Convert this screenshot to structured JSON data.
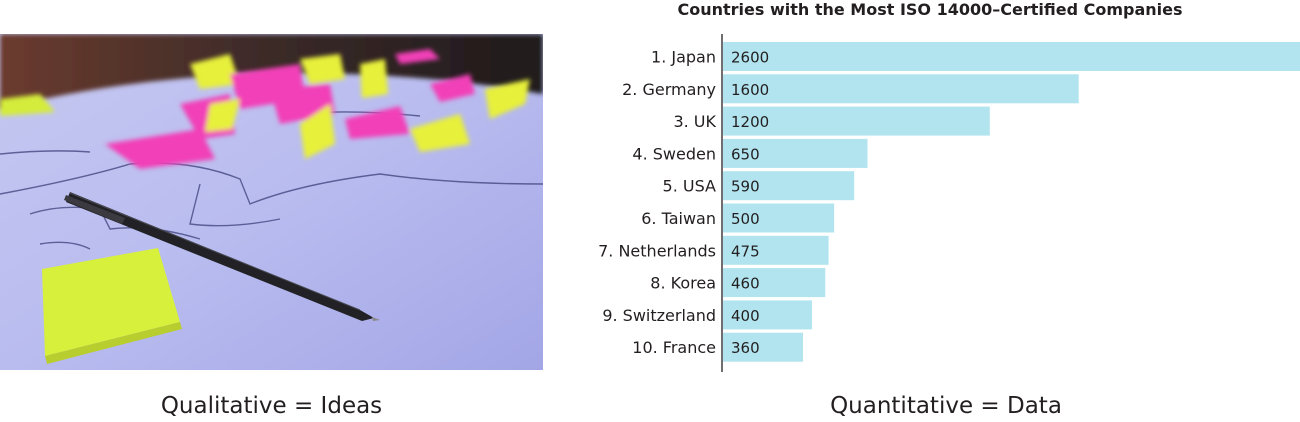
{
  "captions": {
    "left": "Qualitative = Ideas",
    "right": "Quantitative = Data"
  },
  "photo": {
    "subject": "pen and sticky notes on paper map"
  },
  "colors": {
    "bar": "#b1e4ef",
    "axis": "#231f20"
  },
  "chart_data": {
    "type": "bar",
    "orientation": "horizontal",
    "title": "Countries with the Most ISO 14000–Certified Companies",
    "categories": [
      "1. Japan",
      "2. Germany",
      "3. UK",
      "4. Sweden",
      "5. USA",
      "6. Taiwan",
      "7. Netherlands",
      "8. Korea",
      "9. Switzerland",
      "10. France"
    ],
    "values": [
      2600,
      1600,
      1200,
      650,
      590,
      500,
      475,
      460,
      400,
      360
    ],
    "data_labels": [
      "2600",
      "1600",
      "1200",
      "650",
      "590",
      "500",
      "475",
      "460",
      "400",
      "360"
    ],
    "xlim": [
      0,
      2600
    ],
    "xlabel": "",
    "ylabel": "",
    "grid": false,
    "legend": "none"
  }
}
